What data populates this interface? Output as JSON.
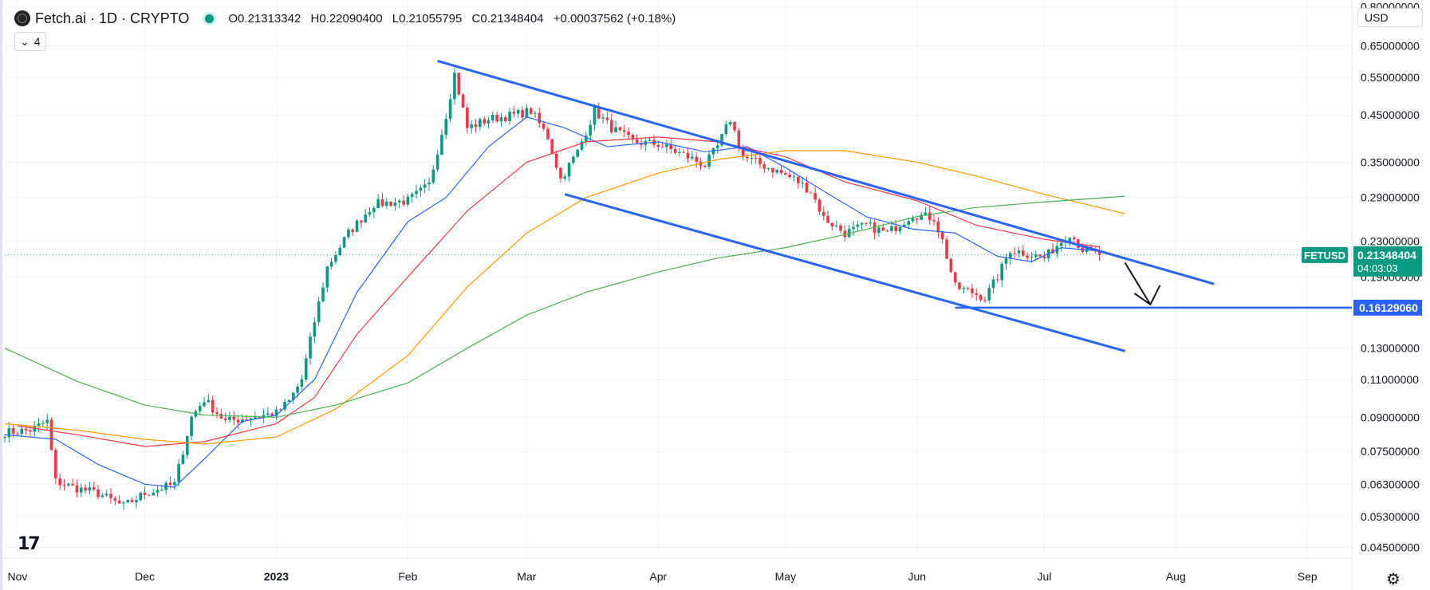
{
  "header": {
    "symbol": "Fetch.ai · 1D · CRYPTO",
    "open": "O0.21313342",
    "high": "H0.22090400",
    "low": "L0.21055795",
    "close": "C0.21348404",
    "change": "+0.00037562 (+0.18%)",
    "status_color": "#089981"
  },
  "indicators_button": {
    "label": "4",
    "icon": "chevron-down-icon"
  },
  "currency_select": {
    "value": "USD"
  },
  "logo_text": "17",
  "settings_icon": "gear-icon",
  "chart_data": {
    "type": "candlestick",
    "scale": "log",
    "ylim": [
      0.0425,
      0.83
    ],
    "y_ticks": [
      "0.80000000",
      "0.65000000",
      "0.55000000",
      "0.45000000",
      "0.35000000",
      "0.29000000",
      "0.23000000",
      "0.19000000",
      "0.13000000",
      "0.11000000",
      "0.09000000",
      "0.07500000",
      "0.06300000",
      "0.05300000",
      "0.04500000"
    ],
    "y_tick_values": [
      0.8,
      0.65,
      0.55,
      0.45,
      0.35,
      0.29,
      0.23,
      0.19,
      0.13,
      0.11,
      0.09,
      0.075,
      0.063,
      0.053,
      0.045
    ],
    "x_ticks": [
      "Nov",
      "Dec",
      "2023",
      "Feb",
      "Mar",
      "Apr",
      "May",
      "Jun",
      "Jul",
      "Aug",
      "Sep"
    ],
    "x_tick_dates": [
      "2022-11-01",
      "2022-12-01",
      "2023-01-01",
      "2023-02-01",
      "2023-03-01",
      "2023-04-01",
      "2023-05-01",
      "2023-06-01",
      "2023-07-01",
      "2023-08-01",
      "2023-09-01"
    ],
    "x_range": [
      "2022-10-29",
      "2023-09-11"
    ],
    "price_anchors": [
      [
        "2022-10-29",
        0.083
      ],
      [
        "2022-11-04",
        0.084
      ],
      [
        "2022-11-08",
        0.088
      ],
      [
        "2022-11-10",
        0.064
      ],
      [
        "2022-11-14",
        0.062
      ],
      [
        "2022-11-20",
        0.06
      ],
      [
        "2022-11-26",
        0.056
      ],
      [
        "2022-12-01",
        0.06
      ],
      [
        "2022-12-08",
        0.063
      ],
      [
        "2022-12-12",
        0.09
      ],
      [
        "2022-12-15",
        0.099
      ],
      [
        "2022-12-20",
        0.088
      ],
      [
        "2022-12-26",
        0.09
      ],
      [
        "2023-01-01",
        0.092
      ],
      [
        "2023-01-04",
        0.098
      ],
      [
        "2023-01-07",
        0.11
      ],
      [
        "2023-01-10",
        0.15
      ],
      [
        "2023-01-13",
        0.2
      ],
      [
        "2023-01-18",
        0.24
      ],
      [
        "2023-01-24",
        0.28
      ],
      [
        "2023-02-01",
        0.285
      ],
      [
        "2023-02-06",
        0.31
      ],
      [
        "2023-02-10",
        0.45
      ],
      [
        "2023-02-12",
        0.56
      ],
      [
        "2023-02-15",
        0.42
      ],
      [
        "2023-02-20",
        0.44
      ],
      [
        "2023-02-26",
        0.45
      ],
      [
        "2023-03-02",
        0.46
      ],
      [
        "2023-03-06",
        0.4
      ],
      [
        "2023-03-09",
        0.32
      ],
      [
        "2023-03-13",
        0.37
      ],
      [
        "2023-03-17",
        0.46
      ],
      [
        "2023-03-21",
        0.42
      ],
      [
        "2023-03-26",
        0.39
      ],
      [
        "2023-04-01",
        0.385
      ],
      [
        "2023-04-08",
        0.36
      ],
      [
        "2023-04-12",
        0.345
      ],
      [
        "2023-04-15",
        0.38
      ],
      [
        "2023-04-18",
        0.44
      ],
      [
        "2023-04-21",
        0.36
      ],
      [
        "2023-04-27",
        0.34
      ],
      [
        "2023-05-03",
        0.32
      ],
      [
        "2023-05-07",
        0.3
      ],
      [
        "2023-05-10",
        0.26
      ],
      [
        "2023-05-15",
        0.24
      ],
      [
        "2023-05-20",
        0.25
      ],
      [
        "2023-05-25",
        0.24
      ],
      [
        "2023-05-31",
        0.265
      ],
      [
        "2023-06-05",
        0.26
      ],
      [
        "2023-06-07",
        0.23
      ],
      [
        "2023-06-10",
        0.18
      ],
      [
        "2023-06-14",
        0.175
      ],
      [
        "2023-06-17",
        0.17
      ],
      [
        "2023-06-20",
        0.19
      ],
      [
        "2023-06-23",
        0.22
      ],
      [
        "2023-06-27",
        0.215
      ],
      [
        "2023-07-01",
        0.21
      ],
      [
        "2023-07-04",
        0.225
      ],
      [
        "2023-07-07",
        0.24
      ],
      [
        "2023-07-10",
        0.22
      ],
      [
        "2023-07-14",
        0.2135
      ]
    ],
    "moving_averages": [
      {
        "color": "#2962ff",
        "points": [
          [
            "2022-10-29",
            0.082
          ],
          [
            "2022-11-10",
            0.08
          ],
          [
            "2022-11-20",
            0.07
          ],
          [
            "2022-12-01",
            0.063
          ],
          [
            "2022-12-08",
            0.062
          ],
          [
            "2022-12-15",
            0.072
          ],
          [
            "2022-12-24",
            0.088
          ],
          [
            "2023-01-01",
            0.091
          ],
          [
            "2023-01-10",
            0.11
          ],
          [
            "2023-01-20",
            0.175
          ],
          [
            "2023-02-01",
            0.255
          ],
          [
            "2023-02-10",
            0.29
          ],
          [
            "2023-02-20",
            0.38
          ],
          [
            "2023-03-01",
            0.445
          ],
          [
            "2023-03-10",
            0.42
          ],
          [
            "2023-03-20",
            0.38
          ],
          [
            "2023-04-01",
            0.39
          ],
          [
            "2023-04-12",
            0.37
          ],
          [
            "2023-04-22",
            0.38
          ],
          [
            "2023-05-01",
            0.34
          ],
          [
            "2023-05-10",
            0.3
          ],
          [
            "2023-05-20",
            0.262
          ],
          [
            "2023-05-31",
            0.245
          ],
          [
            "2023-06-10",
            0.24
          ],
          [
            "2023-06-20",
            0.212
          ],
          [
            "2023-06-28",
            0.206
          ],
          [
            "2023-07-05",
            0.222
          ],
          [
            "2023-07-14",
            0.218
          ]
        ]
      },
      {
        "color": "#f23645",
        "points": [
          [
            "2022-11-01",
            0.086
          ],
          [
            "2022-11-15",
            0.082
          ],
          [
            "2022-12-01",
            0.077
          ],
          [
            "2022-12-15",
            0.079
          ],
          [
            "2023-01-01",
            0.087
          ],
          [
            "2023-01-10",
            0.1
          ],
          [
            "2023-01-20",
            0.14
          ],
          [
            "2023-02-01",
            0.19
          ],
          [
            "2023-02-15",
            0.27
          ],
          [
            "2023-03-01",
            0.35
          ],
          [
            "2023-03-15",
            0.39
          ],
          [
            "2023-04-01",
            0.4
          ],
          [
            "2023-04-15",
            0.39
          ],
          [
            "2023-05-01",
            0.36
          ],
          [
            "2023-05-15",
            0.315
          ],
          [
            "2023-06-01",
            0.285
          ],
          [
            "2023-06-15",
            0.25
          ],
          [
            "2023-07-01",
            0.232
          ],
          [
            "2023-07-14",
            0.223
          ]
        ]
      },
      {
        "color": "#ff9800",
        "points": [
          [
            "2022-10-29",
            0.087
          ],
          [
            "2022-11-15",
            0.084
          ],
          [
            "2022-12-01",
            0.08
          ],
          [
            "2022-12-15",
            0.078
          ],
          [
            "2023-01-01",
            0.081
          ],
          [
            "2023-01-15",
            0.094
          ],
          [
            "2023-02-01",
            0.125
          ],
          [
            "2023-02-15",
            0.18
          ],
          [
            "2023-03-01",
            0.24
          ],
          [
            "2023-03-15",
            0.29
          ],
          [
            "2023-04-01",
            0.33
          ],
          [
            "2023-04-15",
            0.355
          ],
          [
            "2023-05-01",
            0.372
          ],
          [
            "2023-05-15",
            0.372
          ],
          [
            "2023-06-01",
            0.35
          ],
          [
            "2023-06-15",
            0.325
          ],
          [
            "2023-07-01",
            0.295
          ],
          [
            "2023-07-20",
            0.266
          ]
        ]
      },
      {
        "color": "#4caf50",
        "points": [
          [
            "2022-10-29",
            0.13
          ],
          [
            "2022-11-15",
            0.109
          ],
          [
            "2022-12-01",
            0.096
          ],
          [
            "2022-12-15",
            0.091
          ],
          [
            "2023-01-01",
            0.09
          ],
          [
            "2023-01-15",
            0.096
          ],
          [
            "2023-02-01",
            0.108
          ],
          [
            "2023-02-15",
            0.13
          ],
          [
            "2023-03-01",
            0.155
          ],
          [
            "2023-03-15",
            0.175
          ],
          [
            "2023-04-01",
            0.195
          ],
          [
            "2023-04-15",
            0.21
          ],
          [
            "2023-05-01",
            0.222
          ],
          [
            "2023-05-15",
            0.238
          ],
          [
            "2023-06-01",
            0.262
          ],
          [
            "2023-06-15",
            0.275
          ],
          [
            "2023-07-01",
            0.283
          ],
          [
            "2023-07-20",
            0.292
          ]
        ]
      }
    ],
    "drawings": {
      "color": "#2962ff",
      "channel_upper": [
        [
          "2023-02-08",
          0.6
        ],
        [
          "2023-08-10",
          0.183
        ]
      ],
      "channel_lower": [
        [
          "2023-03-10",
          0.295
        ],
        [
          "2023-07-20",
          0.128
        ]
      ],
      "horizontal": {
        "value": 0.1612906,
        "start": "2023-06-10"
      },
      "arrow": {
        "from": [
          "2023-07-20",
          0.205
        ],
        "to": [
          "2023-07-26",
          0.164
        ],
        "color": "#131722"
      }
    },
    "last_price": {
      "symbol": "FETUSD",
      "value": "0.21348404",
      "countdown": "04:03:03",
      "raw": 0.21348404,
      "color": "#089981"
    },
    "level_label": {
      "value": "0.16129060",
      "raw": 0.1612906,
      "color": "#2962ff"
    }
  }
}
